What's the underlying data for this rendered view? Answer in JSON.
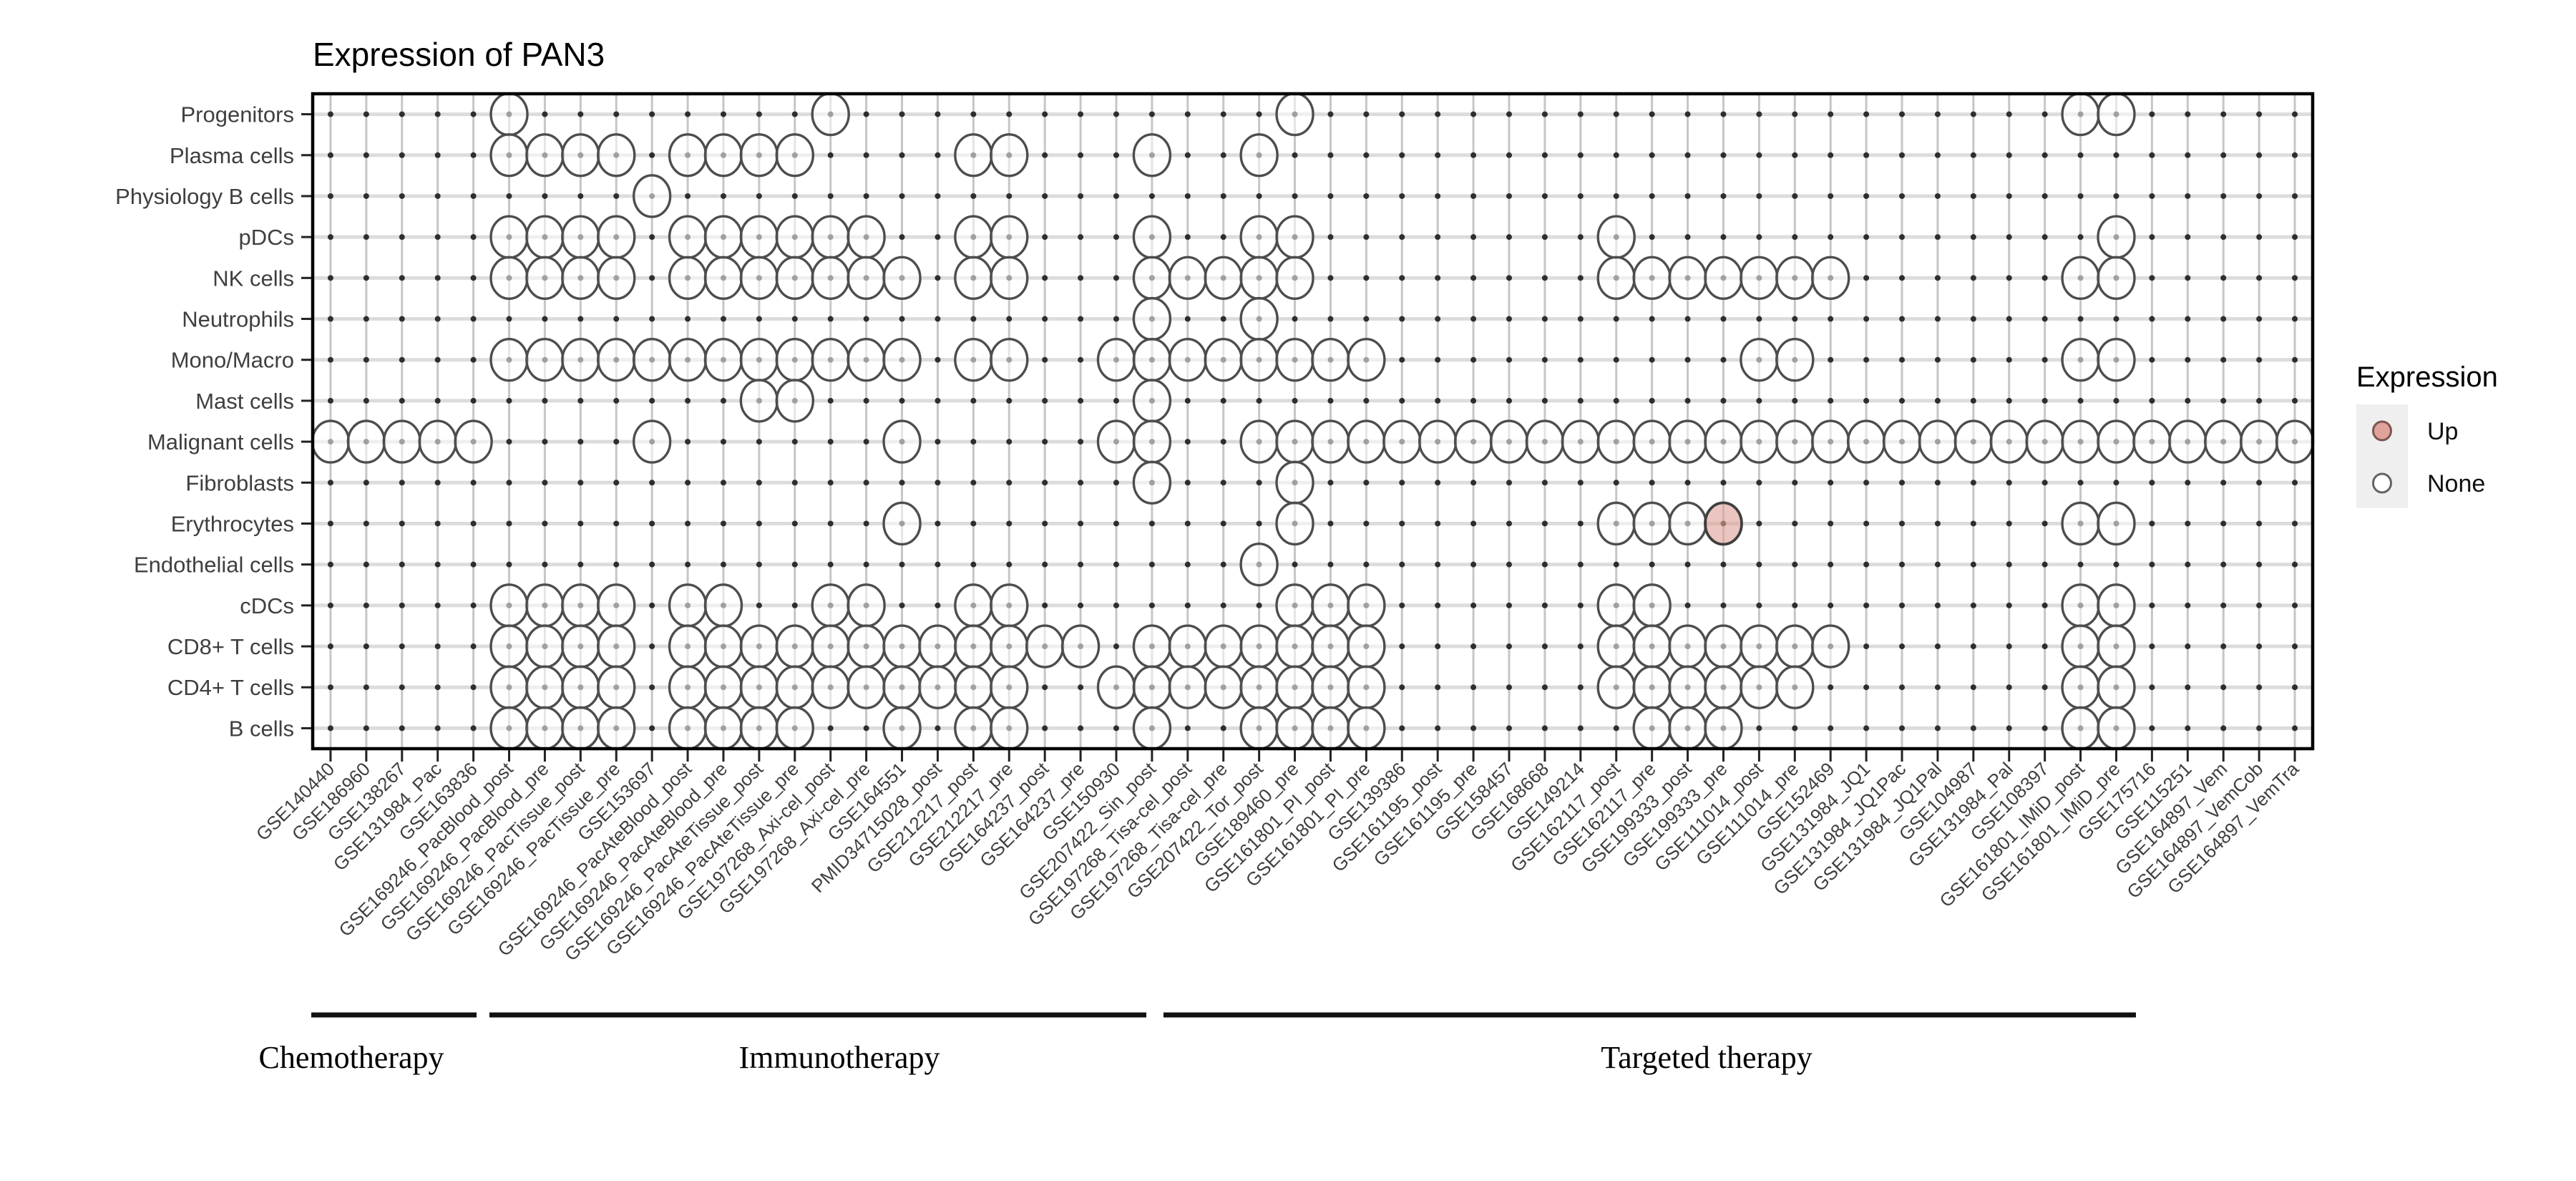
{
  "title": "Expression of PAN3",
  "legend": {
    "title": "Expression",
    "items": [
      {
        "label": "Up",
        "fill": "#dfa39b",
        "stroke": "#7d564f"
      },
      {
        "label": "None",
        "fill": "#ffffff",
        "stroke": "#636363"
      }
    ],
    "key_background": "#efefef"
  },
  "colors": {
    "none_dot_stroke": "#4d4d4d",
    "up_dot_fill": "#dfa39b",
    "up_dot_stroke": "#3f3f3f",
    "grid_vertical": "#c6c6c6",
    "grid_horizontal": "#dcdcdc",
    "grid_node": "#2e2e2e",
    "panel_border": "#000000",
    "bracket": "#111111"
  },
  "chart_data": {
    "type": "dot_matrix",
    "title": "Expression of PAN3",
    "encoding": "open circle = expression 'None' detected dataset/celltype pair; filled pink circle = 'Up'",
    "rows": [
      "Progenitors",
      "Plasma cells",
      "Physiology B cells",
      "pDCs",
      "NK cells",
      "Neutrophils",
      "Mono/Macro",
      "Mast cells",
      "Malignant cells",
      "Fibroblasts",
      "Erythrocytes",
      "Endothelial cells",
      "cDCs",
      "CD8+ T cells",
      "CD4+ T cells",
      "B cells"
    ],
    "columns": [
      "GSE140440",
      "GSE186960",
      "GSE138267",
      "GSE131984_Pac",
      "GSE163836",
      "GSE169246_PacBlood_post",
      "GSE169246_PacBlood_pre",
      "GSE169246_PacTissue_post",
      "GSE169246_PacTissue_pre",
      "GSE153697",
      "GSE169246_PacAteBlood_post",
      "GSE169246_PacAteBlood_pre",
      "GSE169246_PacAteTissue_post",
      "GSE169246_PacAteTissue_pre",
      "GSE197268_Axi-cel_post",
      "GSE197268_Axi-cel_pre",
      "GSE164551",
      "PMID34715028_post",
      "GSE212217_post",
      "GSE212217_pre",
      "GSE164237_post",
      "GSE164237_pre",
      "GSE150930",
      "GSE207422_Sin_post",
      "GSE197268_Tisa-cel_post",
      "GSE197268_Tisa-cel_pre",
      "GSE207422_Tor_post",
      "GSE189460_pre",
      "GSE161801_PI_post",
      "GSE161801_PI_pre",
      "GSE139386",
      "GSE161195_post",
      "GSE161195_pre",
      "GSE158457",
      "GSE168668",
      "GSE149214",
      "GSE162117_post",
      "GSE162117_pre",
      "GSE199333_post",
      "GSE199333_pre",
      "GSE111014_post",
      "GSE111014_pre",
      "GSE152469",
      "GSE131984_JQ1",
      "GSE131984_JQ1Pac",
      "GSE131984_JQ1Pal",
      "GSE104987",
      "GSE131984_Pal",
      "GSE108397",
      "GSE161801_IMiD_post",
      "GSE161801_IMiD_pre",
      "GSE175716",
      "GSE115251",
      "GSE164897_Vem",
      "GSE164897_VemCob",
      "GSE164897_VemTra"
    ],
    "groups": [
      {
        "label": "Chemotherapy",
        "from": 1,
        "to": 5
      },
      {
        "label": "Immunotherapy",
        "from": 6,
        "to": 23
      },
      {
        "label": "Targeted therapy",
        "from": 24,
        "to": 51
      }
    ],
    "none_cells": {
      "Progenitors": [
        6,
        15,
        28,
        50,
        51
      ],
      "Plasma cells": [
        6,
        7,
        8,
        9,
        11,
        12,
        13,
        14,
        19,
        20,
        24,
        27
      ],
      "Physiology B cells": [
        10
      ],
      "pDCs": [
        6,
        7,
        8,
        9,
        11,
        12,
        13,
        14,
        15,
        16,
        19,
        20,
        24,
        27,
        28,
        37,
        51
      ],
      "NK cells": [
        6,
        7,
        8,
        9,
        11,
        12,
        13,
        14,
        15,
        16,
        17,
        19,
        20,
        24,
        25,
        26,
        27,
        28,
        37,
        38,
        39,
        40,
        41,
        42,
        43,
        50,
        51
      ],
      "Neutrophils": [
        24,
        27
      ],
      "Mono/Macro": [
        6,
        7,
        8,
        9,
        10,
        11,
        12,
        13,
        14,
        15,
        16,
        17,
        19,
        20,
        23,
        24,
        25,
        26,
        27,
        28,
        29,
        30,
        41,
        42,
        50,
        51
      ],
      "Mast cells": [
        13,
        14,
        24
      ],
      "Malignant cells": [
        1,
        2,
        3,
        4,
        5,
        10,
        17,
        23,
        24,
        27,
        28,
        29,
        30,
        31,
        32,
        33,
        34,
        35,
        36,
        37,
        38,
        39,
        40,
        41,
        42,
        43,
        44,
        45,
        46,
        47,
        48,
        49,
        50,
        51,
        52,
        53,
        54,
        55,
        56
      ],
      "Fibroblasts": [
        24,
        28
      ],
      "Erythrocytes": [
        17,
        28,
        37,
        38,
        39,
        50,
        51
      ],
      "Endothelial cells": [
        27
      ],
      "cDCs": [
        6,
        7,
        8,
        9,
        11,
        12,
        15,
        16,
        19,
        20,
        28,
        29,
        30,
        37,
        38,
        50,
        51
      ],
      "CD8+ T cells": [
        6,
        7,
        8,
        9,
        11,
        12,
        13,
        14,
        15,
        16,
        17,
        18,
        19,
        20,
        21,
        22,
        24,
        25,
        26,
        27,
        28,
        29,
        30,
        37,
        38,
        39,
        40,
        41,
        42,
        43,
        50,
        51
      ],
      "CD4+ T cells": [
        6,
        7,
        8,
        9,
        11,
        12,
        13,
        14,
        15,
        16,
        17,
        18,
        19,
        20,
        23,
        24,
        25,
        26,
        27,
        28,
        29,
        30,
        37,
        38,
        39,
        40,
        41,
        42,
        50,
        51
      ],
      "B cells": [
        6,
        7,
        8,
        9,
        11,
        12,
        13,
        14,
        17,
        19,
        20,
        24,
        27,
        28,
        29,
        30,
        38,
        39,
        40,
        50,
        51
      ]
    },
    "up_cells": [
      {
        "row": "Erythrocytes",
        "col": 40
      }
    ]
  }
}
